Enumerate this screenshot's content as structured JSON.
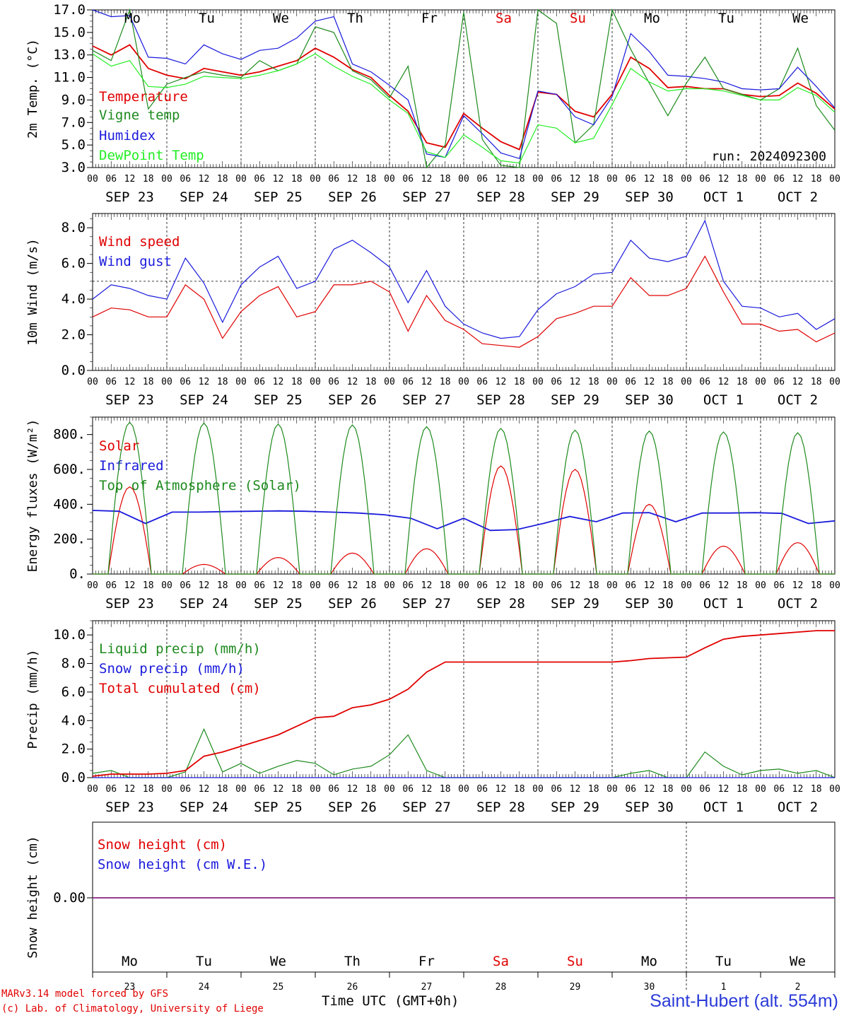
{
  "run_label": "run: 2024092300",
  "x_axis_title": "Time UTC (GMT+0h)",
  "credit_line1": "MARv3.14 model forced by GFS",
  "credit_line2": "(c) Lab. of Climatology, University of Liege",
  "station": "Saint-Hubert (alt. 554m)",
  "hour_ticks": [
    "00",
    "06",
    "12",
    "18"
  ],
  "final_hour_tick": "00",
  "date_labels": [
    "SEP 23",
    "SEP 24",
    "SEP 25",
    "SEP 26",
    "SEP 27",
    "SEP 28",
    "SEP 29",
    "SEP 30",
    "OCT  1",
    "OCT  2"
  ],
  "day_names": [
    "Mo",
    "Tu",
    "We",
    "Th",
    "Fr",
    "Sa",
    "Su",
    "Mo",
    "Tu",
    "We"
  ],
  "day_colors": [
    "#000000",
    "#000000",
    "#000000",
    "#000000",
    "#000000",
    "#e00000",
    "#e00000",
    "#000000",
    "#000000",
    "#000000"
  ],
  "day_numbers": [
    "23",
    "24",
    "25",
    "26",
    "27",
    "28",
    "29",
    "30",
    "1",
    "2"
  ],
  "chart_data": [
    {
      "type": "line",
      "ylabel": "2m Temp. (°C)",
      "ylim": [
        3,
        17
      ],
      "yticks": [
        "3.0",
        "5.0",
        "7.0",
        "9.0",
        "11.0",
        "13.0",
        "15.0",
        "17.0"
      ],
      "x_hours": [
        0,
        6,
        12,
        18,
        24,
        30,
        36,
        42,
        48,
        54,
        60,
        66,
        72,
        78,
        84,
        90,
        96,
        102,
        108,
        114,
        120,
        126,
        132,
        138,
        144,
        150,
        156,
        162,
        168,
        174,
        180,
        186,
        192,
        198,
        204,
        210,
        216,
        222,
        228,
        234,
        240
      ],
      "series": [
        {
          "name": "Temperature",
          "color": "#e00000",
          "values": [
            13.8,
            13.0,
            13.9,
            11.8,
            11.2,
            10.9,
            11.8,
            11.5,
            11.2,
            11.5,
            12.0,
            12.5,
            13.6,
            12.8,
            11.7,
            11.0,
            9.4,
            8.0,
            5.2,
            4.8,
            7.8,
            6.5,
            5.3,
            4.6,
            9.7,
            9.5,
            8.0,
            7.5,
            9.5,
            12.8,
            11.8,
            10.1,
            10.2,
            10.0,
            10.0,
            9.5,
            9.3,
            9.4,
            10.5,
            9.6,
            8.2
          ]
        },
        {
          "name": "Vigne temp",
          "color": "#1d8a1d",
          "values": [
            13.4,
            12.5,
            17.0,
            8.2,
            10.4,
            11.0,
            11.5,
            11.2,
            11.0,
            12.5,
            11.6,
            12.2,
            15.5,
            15.0,
            11.6,
            10.8,
            9.2,
            12.0,
            3.0,
            5.0,
            16.8,
            5.5,
            3.2,
            3.0,
            17.0,
            15.8,
            5.2,
            6.8,
            17.0,
            13.5,
            10.5,
            7.6,
            10.5,
            12.8,
            10.0,
            9.5,
            9.0,
            10.0,
            13.6,
            8.5,
            6.3
          ]
        },
        {
          "name": "Humidex",
          "color": "#1a1adc",
          "values": [
            17.0,
            16.4,
            16.5,
            12.8,
            12.7,
            12.2,
            13.9,
            13.1,
            12.6,
            13.4,
            13.6,
            14.5,
            16.0,
            16.4,
            12.2,
            11.5,
            10.3,
            9.0,
            4.2,
            3.9,
            7.6,
            6.0,
            4.3,
            3.8,
            9.8,
            9.5,
            7.5,
            6.8,
            9.3,
            14.9,
            13.3,
            11.2,
            11.1,
            10.9,
            10.6,
            10.0,
            9.9,
            10.0,
            11.9,
            10.2,
            8.3
          ]
        },
        {
          "name": "DewPoint Temp",
          "color": "#22ee22",
          "values": [
            13.1,
            12.0,
            12.5,
            10.2,
            10.1,
            10.4,
            11.1,
            11.0,
            10.9,
            11.2,
            11.6,
            12.2,
            13.1,
            12.0,
            11.1,
            10.4,
            9.0,
            7.8,
            4.4,
            3.9,
            5.9,
            4.8,
            3.6,
            3.4,
            6.8,
            6.5,
            5.2,
            5.6,
            8.6,
            11.8,
            10.6,
            9.8,
            10.0,
            10.0,
            9.8,
            9.4,
            9.0,
            9.0,
            10.1,
            9.4,
            7.9
          ]
        }
      ]
    },
    {
      "type": "line",
      "ylabel": "10m Wind (m/s)",
      "ylim": [
        0,
        8.8
      ],
      "yticks": [
        "0.0",
        "2.0",
        "4.0",
        "6.0",
        "8.0"
      ],
      "reference_line": 5.0,
      "x_hours": [
        0,
        6,
        12,
        18,
        24,
        30,
        36,
        42,
        48,
        54,
        60,
        66,
        72,
        78,
        84,
        90,
        96,
        102,
        108,
        114,
        120,
        126,
        132,
        138,
        144,
        150,
        156,
        162,
        168,
        174,
        180,
        186,
        192,
        198,
        204,
        210,
        216,
        222,
        228,
        234,
        240
      ],
      "series": [
        {
          "name": "Wind speed",
          "color": "#e00000",
          "values": [
            3.0,
            3.5,
            3.4,
            3.0,
            3.0,
            4.8,
            4.0,
            1.8,
            3.3,
            4.2,
            4.7,
            3.0,
            3.3,
            4.8,
            4.8,
            5.0,
            4.4,
            2.2,
            4.2,
            2.8,
            2.3,
            1.5,
            1.4,
            1.3,
            1.9,
            2.9,
            3.2,
            3.6,
            3.6,
            5.2,
            4.2,
            4.2,
            4.6,
            6.4,
            4.4,
            2.6,
            2.6,
            2.2,
            2.3,
            1.6,
            2.1
          ]
        },
        {
          "name": "Wind gust",
          "color": "#1a1adc",
          "values": [
            4.0,
            4.8,
            4.6,
            4.2,
            4.0,
            6.3,
            4.9,
            2.7,
            4.8,
            5.8,
            6.4,
            4.6,
            5.0,
            6.8,
            7.3,
            6.6,
            5.8,
            3.8,
            5.6,
            3.6,
            2.6,
            2.1,
            1.8,
            1.9,
            3.4,
            4.3,
            4.7,
            5.4,
            5.5,
            7.3,
            6.3,
            6.1,
            6.4,
            8.4,
            5.0,
            3.6,
            3.5,
            3.0,
            3.2,
            2.3,
            2.9
          ]
        }
      ]
    },
    {
      "type": "line",
      "ylabel": "Energy fluxes (W/m²)",
      "ylim": [
        0,
        900
      ],
      "yticks": [
        "0.",
        "200.",
        "400.",
        "600.",
        "800."
      ],
      "series": [
        {
          "name": "Solar",
          "color": "#e00000",
          "peaks": [
            500,
            55,
            95,
            120,
            145,
            620,
            600,
            400,
            160,
            180
          ]
        },
        {
          "name": "Infrared",
          "color": "#1a1adc",
          "values": [
            365,
            360,
            290,
            355,
            355,
            358,
            360,
            362,
            360,
            355,
            350,
            340,
            320,
            260,
            320,
            250,
            255,
            290,
            330,
            300,
            350,
            352,
            300,
            350,
            350,
            352,
            348,
            290,
            305
          ]
        },
        {
          "name": "Top of Atmosphere (Solar)",
          "color": "#1d8a1d",
          "peaks": [
            870,
            865,
            860,
            855,
            845,
            835,
            825,
            820,
            815,
            810
          ]
        }
      ]
    },
    {
      "type": "line",
      "ylabel": "Precip (mm/h)",
      "ylim": [
        0,
        11
      ],
      "yticks": [
        "0.0",
        "2.0",
        "4.0",
        "6.0",
        "8.0",
        "10.0"
      ],
      "x_hours": [
        0,
        6,
        12,
        18,
        24,
        30,
        36,
        42,
        48,
        54,
        60,
        66,
        72,
        78,
        84,
        90,
        96,
        102,
        108,
        114,
        120,
        126,
        132,
        138,
        144,
        150,
        156,
        162,
        168,
        174,
        180,
        186,
        192,
        198,
        204,
        210,
        216,
        222,
        228,
        234,
        240
      ],
      "series": [
        {
          "name": "Liquid precip (mm/h)",
          "color": "#1d8a1d",
          "values": [
            0.3,
            0.5,
            0,
            0,
            0,
            0.4,
            3.4,
            0.4,
            1.0,
            0.3,
            0.8,
            1.2,
            1.0,
            0.2,
            0.6,
            0.8,
            1.6,
            3.0,
            0.5,
            0,
            0,
            0,
            0,
            0,
            0,
            0,
            0,
            0,
            0,
            0.3,
            0.5,
            0,
            0,
            1.8,
            0.8,
            0.2,
            0.5,
            0.6,
            0.3,
            0.5,
            0
          ]
        },
        {
          "name": "Snow precip (mm/h)",
          "color": "#1a1adc",
          "values": [
            0,
            0,
            0,
            0,
            0,
            0,
            0,
            0,
            0,
            0,
            0,
            0,
            0,
            0,
            0,
            0,
            0,
            0,
            0,
            0,
            0,
            0,
            0,
            0,
            0,
            0,
            0,
            0,
            0,
            0,
            0,
            0,
            0,
            0,
            0,
            0,
            0,
            0,
            0,
            0,
            0
          ]
        },
        {
          "name": "Total cumulated (cm)",
          "color": "#e00000",
          "values": [
            0.1,
            0.25,
            0.25,
            0.25,
            0.3,
            0.5,
            1.5,
            1.8,
            2.2,
            2.6,
            3.0,
            3.6,
            4.2,
            4.3,
            4.9,
            5.1,
            5.5,
            6.2,
            7.4,
            8.1,
            8.1,
            8.1,
            8.1,
            8.1,
            8.1,
            8.1,
            8.1,
            8.1,
            8.1,
            8.2,
            8.35,
            8.4,
            8.45,
            9.1,
            9.7,
            9.9,
            10.0,
            10.1,
            10.2,
            10.3,
            10.3
          ]
        }
      ]
    },
    {
      "type": "line",
      "ylabel": "Snow height (cm)",
      "yticks": [
        "0.00"
      ],
      "series": [
        {
          "name": "Snow height (cm)",
          "color": "#e00000",
          "values": [
            0,
            0
          ]
        },
        {
          "name": "Snow height (cm W.E.)",
          "color": "#1a1adc",
          "values": [
            0,
            0
          ]
        }
      ]
    }
  ]
}
